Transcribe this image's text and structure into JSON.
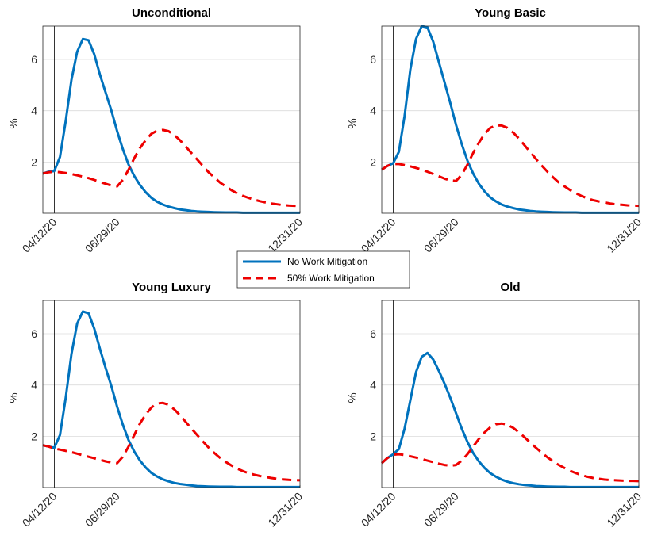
{
  "chart_data": [
    {
      "type": "line",
      "title": "Unconditional",
      "ylabel": "%",
      "x_ticks": [
        "04/12/20",
        "06/29/20",
        "12/31/20"
      ],
      "x_tick_weeks": [
        2,
        13,
        45
      ],
      "vlines_weeks": [
        2,
        13
      ],
      "y_ticks": [
        2,
        4,
        6
      ],
      "xlim": [
        0,
        45
      ],
      "ylim": [
        0,
        7.3
      ],
      "grid": "horizontal",
      "x": [
        0,
        1,
        2,
        3,
        4,
        5,
        6,
        7,
        8,
        9,
        10,
        11,
        12,
        13,
        14,
        15,
        16,
        17,
        18,
        19,
        20,
        21,
        22,
        23,
        24,
        25,
        26,
        27,
        28,
        29,
        30,
        31,
        32,
        33,
        34,
        35,
        36,
        37,
        38,
        39,
        40,
        41,
        42,
        43,
        44,
        45
      ],
      "series": [
        {
          "name": "No Work Mitigation",
          "color": "#0072BD",
          "style": "solid",
          "values": [
            1.55,
            1.62,
            1.65,
            2.2,
            3.6,
            5.2,
            6.3,
            6.8,
            6.75,
            6.2,
            5.4,
            4.7,
            4.0,
            3.2,
            2.5,
            1.9,
            1.45,
            1.1,
            0.82,
            0.6,
            0.45,
            0.34,
            0.26,
            0.2,
            0.15,
            0.12,
            0.09,
            0.07,
            0.06,
            0.05,
            0.04,
            0.035,
            0.03,
            0.03,
            0.03,
            0.02,
            0.02,
            0.02,
            0.02,
            0.02,
            0.02,
            0.02,
            0.02,
            0.02,
            0.02,
            0.02
          ]
        },
        {
          "name": "50% Work Mitigation",
          "color": "#EE0000",
          "style": "dashed",
          "values": [
            1.55,
            1.6,
            1.62,
            1.6,
            1.57,
            1.53,
            1.48,
            1.43,
            1.37,
            1.3,
            1.22,
            1.15,
            1.08,
            1.05,
            1.3,
            1.7,
            2.15,
            2.55,
            2.85,
            3.1,
            3.22,
            3.25,
            3.2,
            3.05,
            2.85,
            2.6,
            2.35,
            2.1,
            1.85,
            1.6,
            1.4,
            1.2,
            1.05,
            0.9,
            0.78,
            0.68,
            0.6,
            0.53,
            0.47,
            0.42,
            0.38,
            0.35,
            0.32,
            0.3,
            0.29,
            0.28
          ]
        }
      ]
    },
    {
      "type": "line",
      "title": "Young Basic",
      "ylabel": "%",
      "x_ticks": [
        "04/12/20",
        "06/29/20",
        "12/31/20"
      ],
      "x_tick_weeks": [
        2,
        13,
        45
      ],
      "vlines_weeks": [
        2,
        13
      ],
      "y_ticks": [
        2,
        4,
        6
      ],
      "xlim": [
        0,
        45
      ],
      "ylim": [
        0,
        7.3
      ],
      "grid": "horizontal",
      "x": [
        0,
        1,
        2,
        3,
        4,
        5,
        6,
        7,
        8,
        9,
        10,
        11,
        12,
        13,
        14,
        15,
        16,
        17,
        18,
        19,
        20,
        21,
        22,
        23,
        24,
        25,
        26,
        27,
        28,
        29,
        30,
        31,
        32,
        33,
        34,
        35,
        36,
        37,
        38,
        39,
        40,
        41,
        42,
        43,
        44,
        45
      ],
      "series": [
        {
          "name": "No Work Mitigation",
          "color": "#0072BD",
          "style": "solid",
          "values": [
            1.7,
            1.85,
            1.95,
            2.4,
            3.8,
            5.6,
            6.8,
            7.3,
            7.25,
            6.7,
            5.9,
            5.1,
            4.3,
            3.45,
            2.7,
            2.05,
            1.55,
            1.15,
            0.85,
            0.62,
            0.46,
            0.34,
            0.26,
            0.2,
            0.15,
            0.12,
            0.09,
            0.07,
            0.06,
            0.05,
            0.04,
            0.035,
            0.03,
            0.03,
            0.03,
            0.02,
            0.02,
            0.02,
            0.02,
            0.02,
            0.02,
            0.02,
            0.02,
            0.02,
            0.02,
            0.02
          ]
        },
        {
          "name": "50% Work Mitigation",
          "color": "#EE0000",
          "style": "dashed",
          "values": [
            1.7,
            1.85,
            1.92,
            1.92,
            1.88,
            1.83,
            1.77,
            1.7,
            1.62,
            1.53,
            1.44,
            1.35,
            1.28,
            1.26,
            1.5,
            1.9,
            2.35,
            2.75,
            3.1,
            3.33,
            3.43,
            3.42,
            3.33,
            3.15,
            2.92,
            2.65,
            2.38,
            2.12,
            1.86,
            1.62,
            1.4,
            1.2,
            1.05,
            0.9,
            0.78,
            0.67,
            0.58,
            0.51,
            0.46,
            0.42,
            0.38,
            0.35,
            0.33,
            0.31,
            0.3,
            0.29
          ]
        }
      ]
    },
    {
      "type": "line",
      "title": "Young Luxury",
      "ylabel": "%",
      "x_ticks": [
        "04/12/20",
        "06/29/20",
        "12/31/20"
      ],
      "x_tick_weeks": [
        2,
        13,
        45
      ],
      "vlines_weeks": [
        2,
        13
      ],
      "y_ticks": [
        2,
        4,
        6
      ],
      "xlim": [
        0,
        45
      ],
      "ylim": [
        0,
        7.3
      ],
      "grid": "horizontal",
      "x": [
        0,
        1,
        2,
        3,
        4,
        5,
        6,
        7,
        8,
        9,
        10,
        11,
        12,
        13,
        14,
        15,
        16,
        17,
        18,
        19,
        20,
        21,
        22,
        23,
        24,
        25,
        26,
        27,
        28,
        29,
        30,
        31,
        32,
        33,
        34,
        35,
        36,
        37,
        38,
        39,
        40,
        41,
        42,
        43,
        44,
        45
      ],
      "series": [
        {
          "name": "No Work Mitigation",
          "color": "#0072BD",
          "style": "solid",
          "values": [
            1.65,
            1.6,
            1.55,
            2.05,
            3.5,
            5.2,
            6.4,
            6.87,
            6.8,
            6.2,
            5.4,
            4.65,
            3.95,
            3.15,
            2.45,
            1.85,
            1.4,
            1.05,
            0.78,
            0.57,
            0.43,
            0.32,
            0.24,
            0.18,
            0.14,
            0.11,
            0.08,
            0.06,
            0.05,
            0.04,
            0.035,
            0.03,
            0.03,
            0.03,
            0.02,
            0.02,
            0.02,
            0.02,
            0.02,
            0.02,
            0.02,
            0.02,
            0.02,
            0.02,
            0.02,
            0.02
          ]
        },
        {
          "name": "50% Work Mitigation",
          "color": "#EE0000",
          "style": "dashed",
          "values": [
            1.65,
            1.6,
            1.52,
            1.48,
            1.43,
            1.38,
            1.32,
            1.26,
            1.2,
            1.14,
            1.08,
            1.02,
            0.97,
            0.95,
            1.2,
            1.6,
            2.05,
            2.5,
            2.85,
            3.12,
            3.28,
            3.3,
            3.23,
            3.05,
            2.82,
            2.56,
            2.3,
            2.05,
            1.8,
            1.56,
            1.35,
            1.16,
            1.0,
            0.86,
            0.74,
            0.64,
            0.56,
            0.5,
            0.45,
            0.41,
            0.37,
            0.34,
            0.32,
            0.3,
            0.29,
            0.28
          ]
        }
      ]
    },
    {
      "type": "line",
      "title": "Old",
      "ylabel": "%",
      "x_ticks": [
        "04/12/20",
        "06/29/20",
        "12/31/20"
      ],
      "x_tick_weeks": [
        2,
        13,
        45
      ],
      "vlines_weeks": [
        2,
        13
      ],
      "y_ticks": [
        2,
        4,
        6
      ],
      "xlim": [
        0,
        45
      ],
      "ylim": [
        0,
        7.3
      ],
      "grid": "horizontal",
      "x": [
        0,
        1,
        2,
        3,
        4,
        5,
        6,
        7,
        8,
        9,
        10,
        11,
        12,
        13,
        14,
        15,
        16,
        17,
        18,
        19,
        20,
        21,
        22,
        23,
        24,
        25,
        26,
        27,
        28,
        29,
        30,
        31,
        32,
        33,
        34,
        35,
        36,
        37,
        38,
        39,
        40,
        41,
        42,
        43,
        44,
        45
      ],
      "series": [
        {
          "name": "No Work Mitigation",
          "color": "#0072BD",
          "style": "solid",
          "values": [
            0.95,
            1.15,
            1.3,
            1.5,
            2.3,
            3.4,
            4.5,
            5.1,
            5.25,
            5.0,
            4.55,
            4.05,
            3.5,
            2.9,
            2.3,
            1.78,
            1.35,
            1.02,
            0.76,
            0.56,
            0.42,
            0.31,
            0.23,
            0.17,
            0.13,
            0.1,
            0.08,
            0.06,
            0.05,
            0.04,
            0.035,
            0.03,
            0.03,
            0.02,
            0.02,
            0.02,
            0.02,
            0.02,
            0.02,
            0.02,
            0.02,
            0.02,
            0.02,
            0.02,
            0.02,
            0.02
          ]
        },
        {
          "name": "50% Work Mitigation",
          "color": "#EE0000",
          "style": "dashed",
          "values": [
            0.95,
            1.15,
            1.28,
            1.3,
            1.27,
            1.22,
            1.17,
            1.11,
            1.05,
            0.99,
            0.93,
            0.88,
            0.85,
            0.88,
            1.05,
            1.3,
            1.6,
            1.9,
            2.15,
            2.35,
            2.47,
            2.5,
            2.45,
            2.33,
            2.16,
            1.96,
            1.75,
            1.55,
            1.36,
            1.18,
            1.02,
            0.88,
            0.76,
            0.65,
            0.56,
            0.48,
            0.42,
            0.37,
            0.34,
            0.31,
            0.29,
            0.28,
            0.27,
            0.26,
            0.26,
            0.25
          ]
        }
      ]
    }
  ],
  "legend": {
    "placement": "center",
    "entries": [
      {
        "label": "No Work Mitigation",
        "color": "#0072BD",
        "style": "solid"
      },
      {
        "label": "50% Work Mitigation",
        "color": "#EE0000",
        "style": "dashed"
      }
    ]
  }
}
